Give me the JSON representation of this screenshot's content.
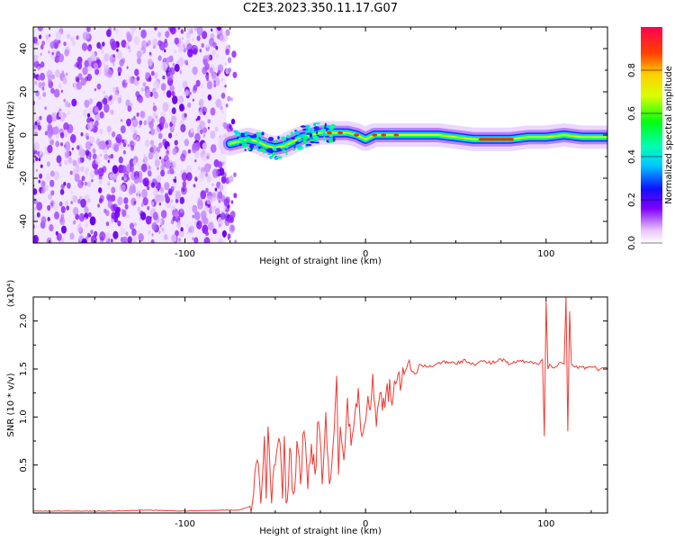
{
  "title": "C2E3.2023.350.11.17.G07",
  "chart_data": [
    {
      "type": "heatmap",
      "title": "C2E3.2023.350.11.17.G07",
      "xlabel": "Height of straight line (km)",
      "ylabel": "Frequency (Hz)",
      "xlim": [
        -184,
        134
      ],
      "ylim": [
        -50,
        50
      ],
      "xticks": [
        -100,
        0,
        100
      ],
      "xtick_labels": [
        "-100",
        "0",
        "100"
      ],
      "yticks": [
        -40,
        -20,
        0,
        20,
        40
      ],
      "ytick_labels": [
        "-40",
        "-20",
        "0",
        "20",
        "40"
      ],
      "noise_region_x": [
        -184,
        -77
      ],
      "signal_trace": {
        "x": [
          -75,
          -70,
          -65,
          -60,
          -55,
          -50,
          -45,
          -40,
          -35,
          -30,
          -25,
          -20,
          -15,
          -10,
          -5,
          0,
          5,
          10,
          20,
          30,
          40,
          50,
          60,
          70,
          80,
          90,
          100,
          110,
          120,
          134
        ],
        "y": [
          -4,
          -3,
          -2,
          -3,
          -5,
          -6,
          -5,
          -3,
          -1,
          0,
          1,
          1,
          1,
          1,
          0,
          -2,
          0,
          0,
          0,
          0,
          0,
          -1,
          -2,
          -2,
          -2,
          -1,
          -1,
          0,
          -1,
          -1
        ]
      },
      "colorbar": {
        "label": "Normalized spectral amplitude",
        "range": [
          0,
          1
        ],
        "ticks": [
          0.0,
          0.2,
          0.4,
          0.6,
          0.8
        ],
        "tick_labels": [
          "0.0",
          "0.2",
          "0.4",
          "0.6",
          "0.8"
        ]
      },
      "grid": false
    },
    {
      "type": "line",
      "xlabel": "Height of straight line (km)",
      "ylabel": "SNR (10 * v/v)",
      "y_multiplier_label": "(x10⁴)",
      "xlim": [
        -184,
        134
      ],
      "ylim": [
        0,
        2.25
      ],
      "xticks": [
        -100,
        0,
        100
      ],
      "xtick_labels": [
        "-100",
        "0",
        "100"
      ],
      "yticks": [
        0.5,
        1.0,
        1.5,
        2.0
      ],
      "ytick_labels": [
        "0.5",
        "1.0",
        "1.5",
        "2.0"
      ],
      "color": "#ee3a33",
      "series": [
        {
          "x": [
            -184,
            -160,
            -140,
            -120,
            -100,
            -80,
            -70,
            -64,
            -62,
            -60,
            -58,
            -56,
            -55,
            -54,
            -52,
            -50,
            -48,
            -46,
            -45,
            -44,
            -42,
            -40,
            -38,
            -36,
            -34,
            -32,
            -30,
            -28,
            -26,
            -24,
            -22,
            -20,
            -18,
            -16,
            -15,
            -14,
            -12,
            -10,
            -8,
            -6,
            -4,
            -2,
            0,
            2,
            4,
            6,
            8,
            10,
            12,
            14,
            16,
            18,
            20,
            22,
            25,
            28,
            30,
            35,
            40,
            45,
            50,
            55,
            60,
            65,
            70,
            75,
            80,
            85,
            90,
            95,
            98,
            99,
            100,
            101,
            102,
            105,
            108,
            110,
            111,
            112,
            113,
            114,
            116,
            120,
            125,
            130,
            134
          ],
          "y": [
            0.02,
            0.02,
            0.02,
            0.03,
            0.02,
            0.03,
            0.03,
            0.07,
            0.2,
            0.55,
            0.1,
            0.8,
            0.15,
            0.9,
            0.1,
            0.5,
            0.78,
            0.15,
            0.8,
            0.1,
            0.68,
            0.2,
            0.75,
            0.3,
            0.85,
            0.25,
            0.72,
            0.4,
            0.95,
            0.3,
            1.05,
            0.3,
            0.7,
            1.43,
            0.4,
            0.9,
            0.55,
            1.2,
            0.7,
            1.0,
            1.3,
            0.8,
            0.95,
            1.1,
            1.45,
            0.9,
            1.25,
            1.2,
            1.35,
            1.2,
            1.38,
            1.45,
            1.35,
            1.48,
            1.5,
            1.45,
            1.55,
            1.52,
            1.56,
            1.58,
            1.55,
            1.6,
            1.55,
            1.58,
            1.56,
            1.6,
            1.55,
            1.58,
            1.57,
            1.55,
            1.6,
            0.8,
            2.2,
            1.5,
            1.55,
            1.52,
            1.57,
            1.55,
            2.25,
            0.85,
            2.1,
            1.55,
            1.52,
            1.52,
            1.52,
            1.5,
            1.5
          ]
        }
      ]
    }
  ]
}
